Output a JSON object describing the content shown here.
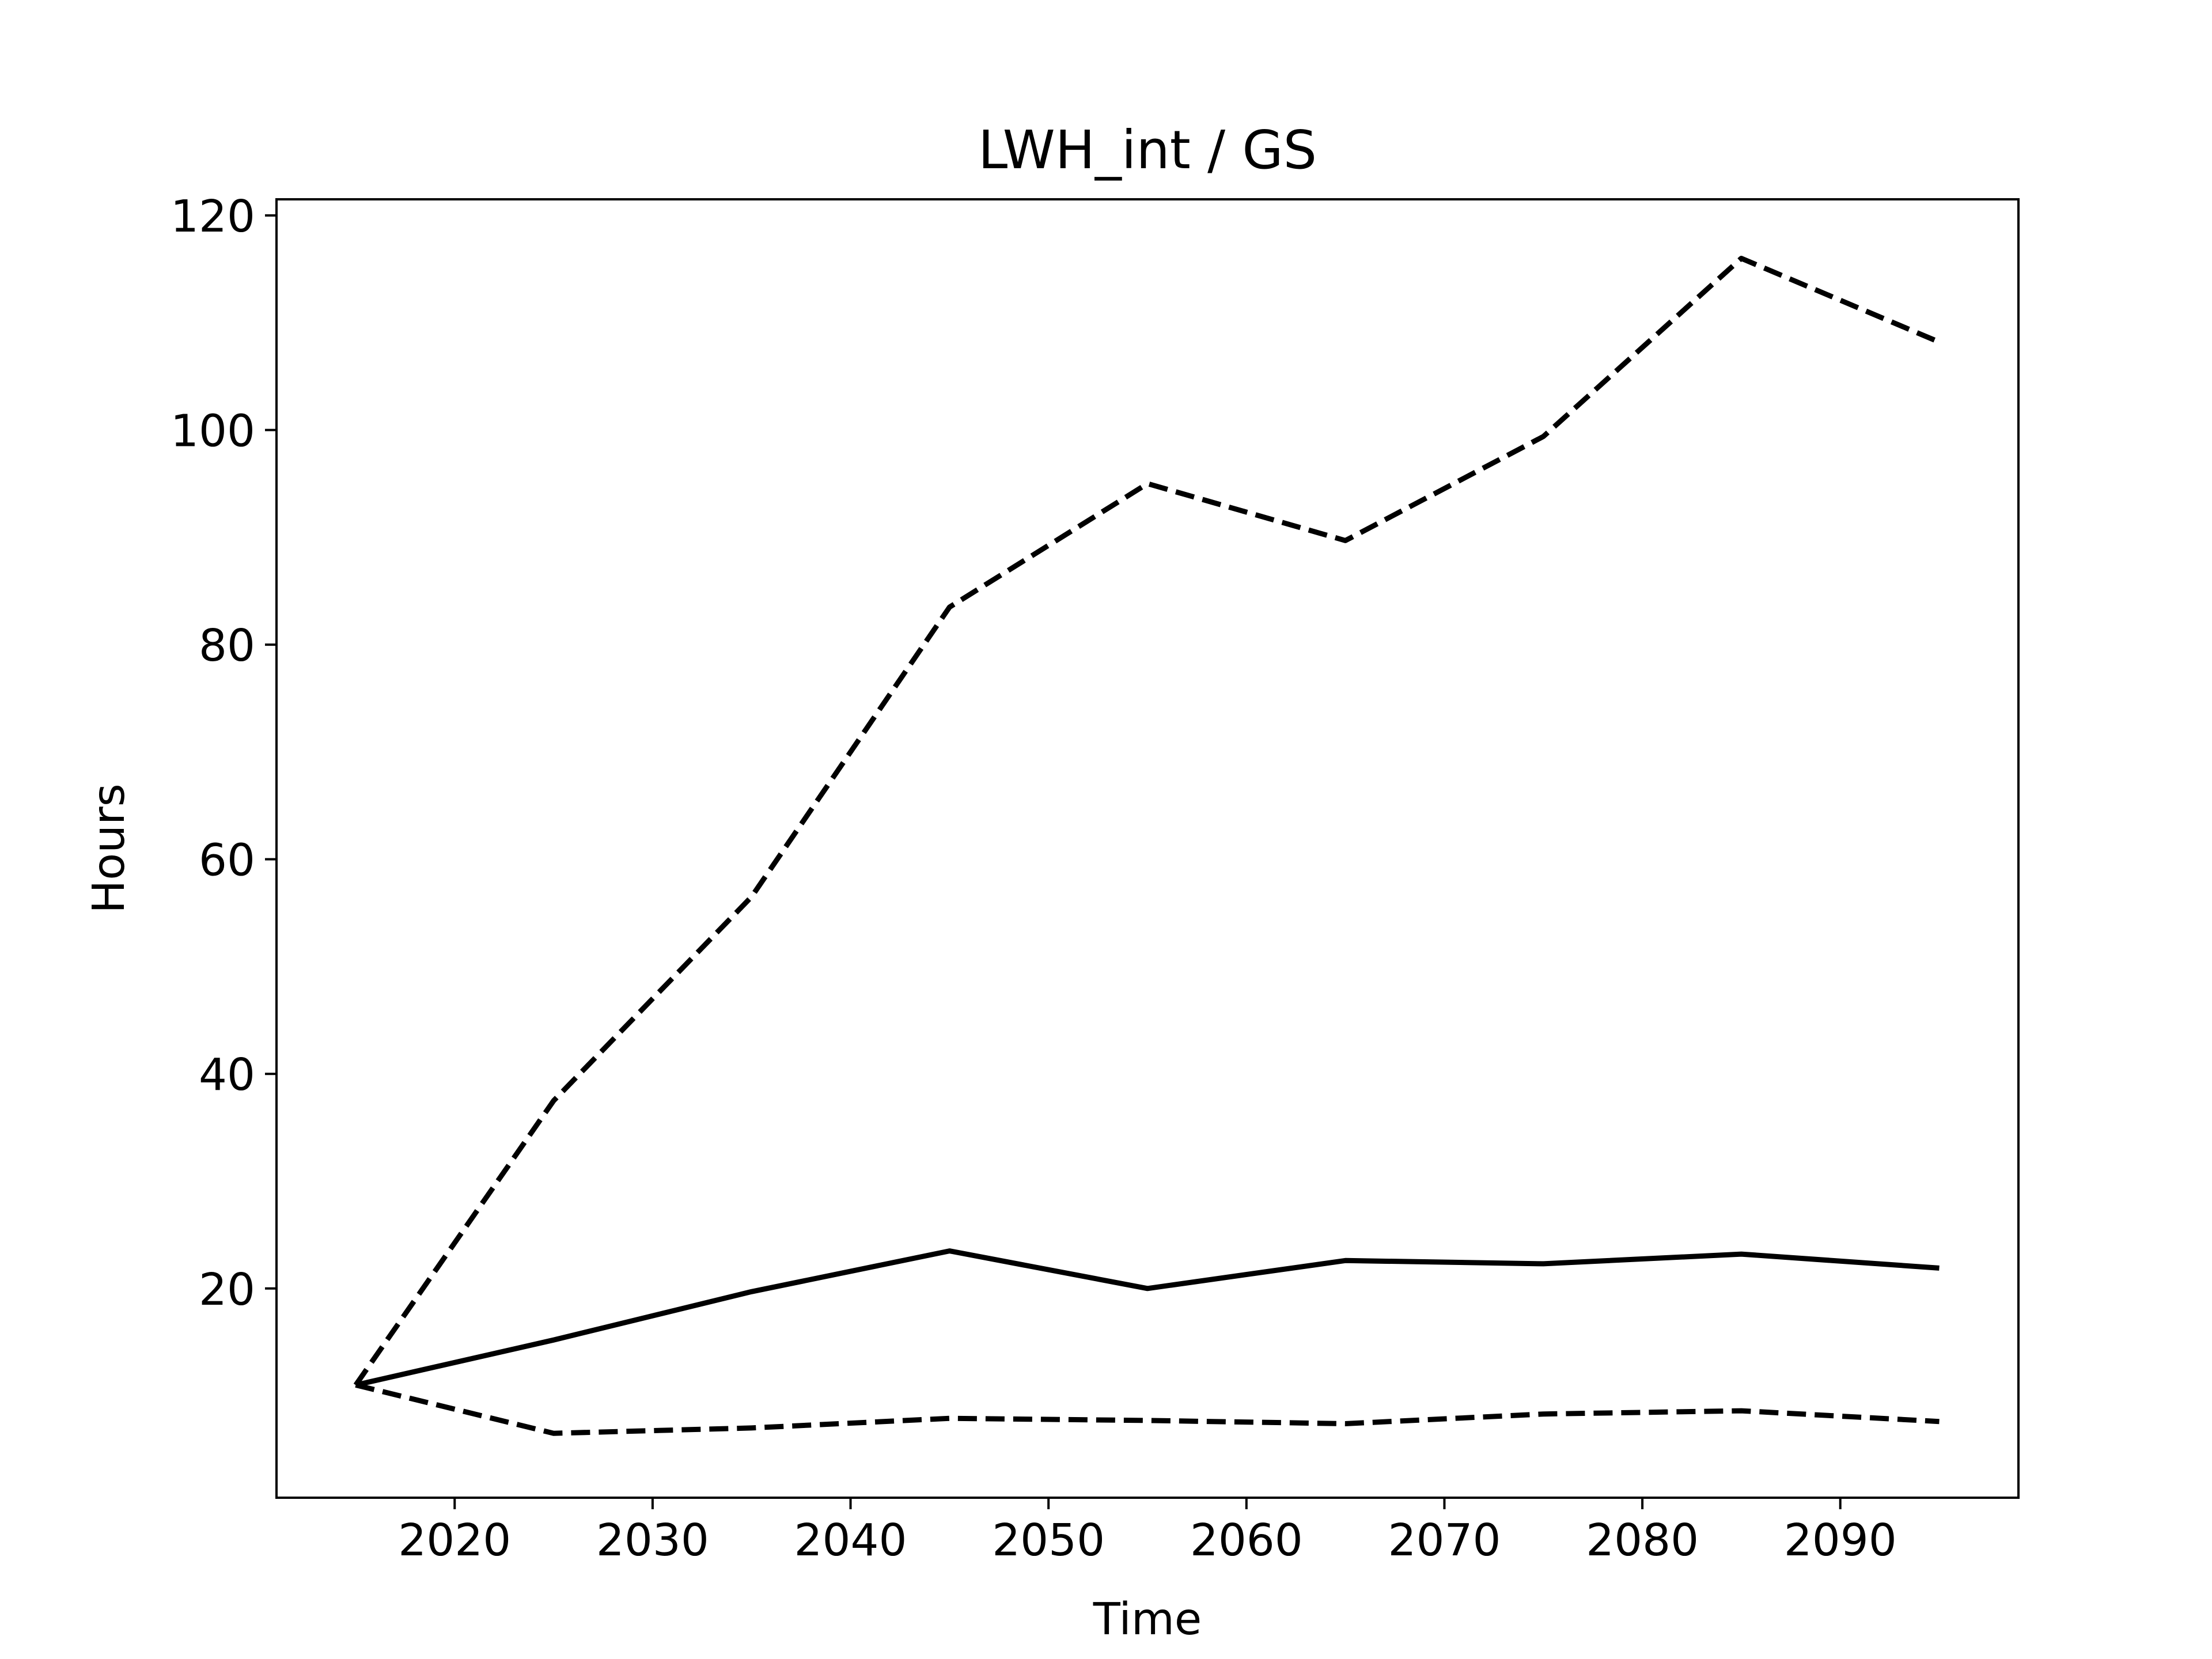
{
  "chart_data": {
    "type": "line",
    "title": "LWH_int / GS",
    "xlabel": "Time",
    "ylabel": "Hours",
    "xlim": [
      2011,
      2099
    ],
    "ylim": [
      0.5,
      121.5
    ],
    "xticks": [
      2020,
      2030,
      2040,
      2050,
      2060,
      2070,
      2080,
      2090
    ],
    "yticks": [
      20,
      40,
      60,
      80,
      100,
      120
    ],
    "grid": false,
    "legend": "none",
    "colors": {
      "line": "#000000",
      "frame": "#000000",
      "background": "#ffffff"
    },
    "x": [
      2015,
      2025,
      2035,
      2045,
      2055,
      2065,
      2075,
      2085,
      2095
    ],
    "series": [
      {
        "style": "dashed",
        "values": [
          11.0,
          37.5,
          56.5,
          83.5,
          95.0,
          89.7,
          99.4,
          116.0,
          108.2
        ]
      },
      {
        "style": "solid",
        "values": [
          11.0,
          15.2,
          19.7,
          23.5,
          20.0,
          22.6,
          22.3,
          23.2,
          21.9
        ]
      },
      {
        "style": "dashed",
        "values": [
          11.0,
          6.5,
          7.0,
          7.9,
          7.7,
          7.4,
          8.3,
          8.6,
          7.6
        ]
      }
    ]
  }
}
